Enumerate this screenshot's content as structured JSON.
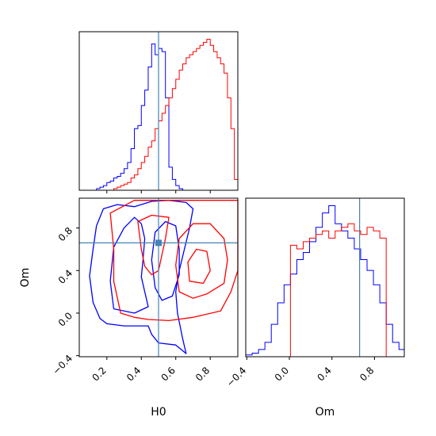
{
  "chart_data": [
    {
      "type": "histogram",
      "panel": "H0 marginal",
      "title": "",
      "xlim": [
        0.04,
        0.96
      ],
      "xticks": [
        0.2,
        0.4,
        0.6,
        0.8
      ],
      "truth_x": 0.5,
      "bin_edges": [
        0.04,
        0.06,
        0.08,
        0.1,
        0.12,
        0.14,
        0.16,
        0.18,
        0.2,
        0.22,
        0.24,
        0.26,
        0.28,
        0.3,
        0.32,
        0.34,
        0.36,
        0.38,
        0.4,
        0.42,
        0.44,
        0.46,
        0.48,
        0.5,
        0.52,
        0.54,
        0.56,
        0.58,
        0.6,
        0.62,
        0.64,
        0.66,
        0.68,
        0.7,
        0.72,
        0.74,
        0.76,
        0.78,
        0.8,
        0.82,
        0.84,
        0.86,
        0.88,
        0.9,
        0.92,
        0.94,
        0.96
      ],
      "series": [
        {
          "color": "#0000ff",
          "values": [
            0,
            0,
            0,
            0,
            0,
            1,
            2,
            3,
            5,
            6,
            8,
            9,
            11,
            14,
            18,
            27,
            40,
            42,
            55,
            65,
            80,
            95,
            88,
            92,
            90,
            60,
            15,
            7,
            3,
            1,
            0,
            0,
            0,
            0,
            0,
            0,
            0,
            0,
            0,
            0,
            0,
            0,
            0,
            0,
            0,
            0
          ]
        },
        {
          "color": "#ff0000",
          "values": [
            0,
            0,
            0,
            0,
            0,
            0,
            0,
            0,
            0,
            0,
            1,
            2,
            3,
            4,
            5,
            8,
            10,
            14,
            18,
            22,
            28,
            32,
            40,
            45,
            50,
            55,
            60,
            66,
            72,
            78,
            82,
            86,
            88,
            90,
            92,
            94,
            96,
            98,
            94,
            90,
            86,
            82,
            76,
            60,
            40,
            7
          ]
        }
      ]
    },
    {
      "type": "contour",
      "panel": "H0 vs Om joint",
      "xlabel": "H0",
      "ylabel": "Om",
      "xlim": [
        0.04,
        0.96
      ],
      "ylim": [
        -0.41,
        1.08
      ],
      "xticks": [
        "0.2",
        "0.4",
        "0.6",
        "0.8"
      ],
      "yticks": [
        "−0.4",
        "0.0",
        "0.4",
        "0.8"
      ],
      "truth": {
        "x": 0.5,
        "y": 0.66
      },
      "series": [
        {
          "color": "#0000ff",
          "levels": [
            [
              [
                0.16,
                -0.05
              ],
              [
                0.12,
                0.1
              ],
              [
                0.1,
                0.35
              ],
              [
                0.12,
                0.6
              ],
              [
                0.14,
                0.82
              ],
              [
                0.18,
                0.98
              ],
              [
                0.26,
                1.02
              ],
              [
                0.36,
                1.0
              ],
              [
                0.46,
                1.05
              ],
              [
                0.56,
                1.06
              ],
              [
                0.66,
                1.04
              ],
              [
                0.7,
                0.98
              ],
              [
                0.68,
                0.8
              ],
              [
                0.65,
                0.6
              ],
              [
                0.62,
                0.4
              ],
              [
                0.6,
                0.2
              ],
              [
                0.61,
                0.0
              ],
              [
                0.64,
                -0.24
              ],
              [
                0.66,
                -0.38
              ],
              [
                0.6,
                -0.3
              ],
              [
                0.5,
                -0.28
              ],
              [
                0.46,
                -0.2
              ],
              [
                0.44,
                -0.12
              ],
              [
                0.3,
                -0.12
              ],
              [
                0.2,
                -0.1
              ]
            ],
            [
              [
                0.24,
                0.04
              ],
              [
                0.22,
                0.3
              ],
              [
                0.24,
                0.62
              ],
              [
                0.3,
                0.8
              ],
              [
                0.36,
                0.9
              ],
              [
                0.4,
                0.84
              ],
              [
                0.42,
                0.7
              ],
              [
                0.41,
                0.5
              ],
              [
                0.4,
                0.34
              ],
              [
                0.42,
                0.2
              ],
              [
                0.44,
                0.06
              ],
              [
                0.36,
                0.0
              ],
              [
                0.3,
                0.02
              ]
            ],
            [
              [
                0.48,
                0.24
              ],
              [
                0.46,
                0.5
              ],
              [
                0.48,
                0.76
              ],
              [
                0.54,
                0.86
              ],
              [
                0.6,
                0.82
              ],
              [
                0.62,
                0.6
              ],
              [
                0.62,
                0.36
              ],
              [
                0.58,
                0.16
              ],
              [
                0.52,
                0.12
              ]
            ]
          ]
        },
        {
          "color": "#ff0000",
          "levels": [
            [
              [
                0.28,
                0.0
              ],
              [
                0.24,
                0.3
              ],
              [
                0.24,
                0.6
              ],
              [
                0.22,
                0.94
              ],
              [
                0.36,
                1.06
              ],
              [
                0.6,
                1.06
              ],
              [
                0.82,
                1.06
              ],
              [
                0.96,
                1.06
              ],
              [
                0.96,
                0.8
              ],
              [
                0.96,
                0.6
              ],
              [
                0.96,
                0.4
              ],
              [
                0.92,
                0.2
              ],
              [
                0.86,
                0.02
              ],
              [
                0.7,
                -0.04
              ],
              [
                0.56,
                -0.07
              ],
              [
                0.44,
                -0.06
              ],
              [
                0.36,
                -0.04
              ]
            ],
            [
              [
                0.4,
                0.6
              ],
              [
                0.38,
                0.86
              ],
              [
                0.46,
                0.92
              ],
              [
                0.56,
                0.9
              ],
              [
                0.54,
                0.7
              ],
              [
                0.5,
                0.4
              ],
              [
                0.46,
                0.36
              ],
              [
                0.42,
                0.44
              ]
            ],
            [
              [
                0.62,
                0.2
              ],
              [
                0.6,
                0.45
              ],
              [
                0.62,
                0.7
              ],
              [
                0.7,
                0.84
              ],
              [
                0.8,
                0.84
              ],
              [
                0.88,
                0.7
              ],
              [
                0.9,
                0.5
              ],
              [
                0.88,
                0.28
              ],
              [
                0.78,
                0.18
              ],
              [
                0.7,
                0.14
              ]
            ],
            [
              [
                0.68,
                0.3
              ],
              [
                0.67,
                0.48
              ],
              [
                0.72,
                0.6
              ],
              [
                0.78,
                0.58
              ],
              [
                0.8,
                0.4
              ],
              [
                0.76,
                0.28
              ]
            ]
          ]
        }
      ]
    },
    {
      "type": "histogram",
      "panel": "Om marginal",
      "xlabel": "Om",
      "xlim": [
        -0.41,
        1.08
      ],
      "xticks": [
        "−0.4",
        "0.0",
        "0.4",
        "0.8"
      ],
      "truth_x": 0.66,
      "bin_edges": [
        -0.41,
        -0.35,
        -0.29,
        -0.23,
        -0.17,
        -0.11,
        -0.05,
        0.01,
        0.07,
        0.13,
        0.19,
        0.25,
        0.31,
        0.37,
        0.43,
        0.49,
        0.55,
        0.61,
        0.67,
        0.73,
        0.79,
        0.85,
        0.91,
        0.97,
        1.03,
        1.08
      ],
      "series": [
        {
          "color": "#0000ff",
          "values": [
            1,
            2,
            4,
            8,
            18,
            30,
            40,
            46,
            54,
            58,
            64,
            72,
            80,
            84,
            74,
            70,
            66,
            60,
            54,
            48,
            40,
            30,
            18,
            8,
            4
          ]
        },
        {
          "color": "#ff0000",
          "values": [
            0,
            0,
            0,
            0,
            0,
            0,
            0,
            62,
            60,
            64,
            66,
            68,
            70,
            66,
            70,
            72,
            74,
            70,
            68,
            72,
            70,
            66,
            0,
            0,
            0
          ]
        }
      ]
    }
  ]
}
